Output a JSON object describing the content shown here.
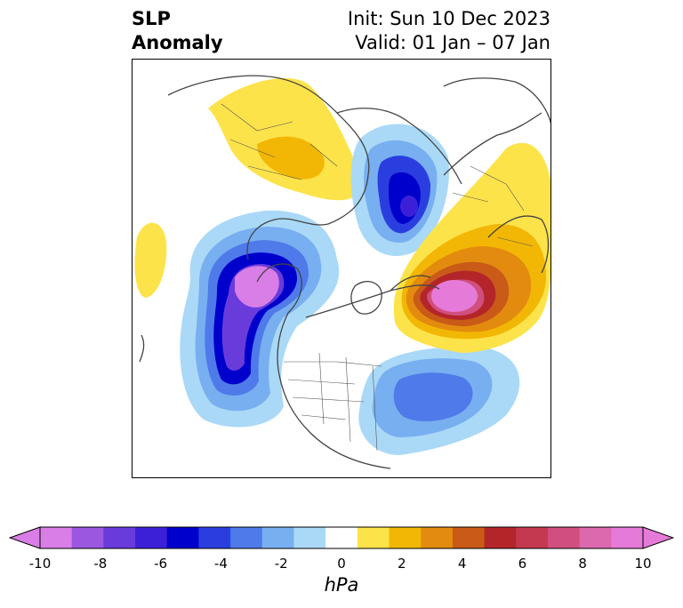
{
  "title": {
    "variable_line1": "SLP",
    "variable_line2": "Anomaly",
    "init": "Init: Sun 10 Dec 2023",
    "valid": "Valid: 01 Jan – 07 Jan"
  },
  "colorbar": {
    "units": "hPa",
    "ticks": [
      "-10",
      "-8",
      "-6",
      "-4",
      "-2",
      "0",
      "2",
      "4",
      "6",
      "8",
      "10"
    ],
    "colors": [
      "#d97ee6",
      "#9b57e0",
      "#6a3bdb",
      "#3c20d8",
      "#0000cc",
      "#2a3edf",
      "#4f7ae9",
      "#78aff0",
      "#aad9f7",
      "#ffffff",
      "#fde34a",
      "#f2b705",
      "#e38b0f",
      "#c95a17",
      "#b4252a",
      "#c4394f",
      "#d14f7f",
      "#dc68ad",
      "#e67ad8"
    ],
    "extend": "both"
  },
  "map": {
    "projection": "north-polar-stereographic",
    "field": "sea-level-pressure-anomaly"
  }
}
